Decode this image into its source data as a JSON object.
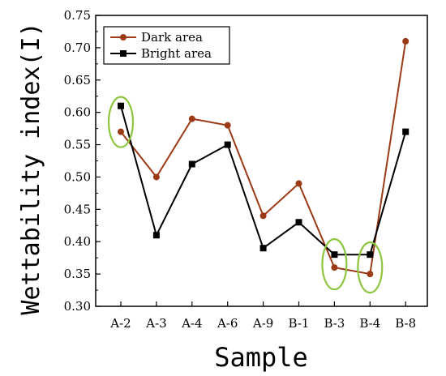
{
  "chart_data": {
    "type": "line",
    "categories": [
      "A-2",
      "A-3",
      "A-4",
      "A-6",
      "A-9",
      "B-1",
      "B-3",
      "B-4",
      "B-8"
    ],
    "series": [
      {
        "name": "Dark area",
        "values": [
          0.57,
          0.5,
          0.59,
          0.58,
          0.44,
          0.49,
          0.36,
          0.35,
          0.71
        ],
        "color": "#9b3a14",
        "marker": "circle"
      },
      {
        "name": "Bright area",
        "values": [
          0.61,
          0.41,
          0.52,
          0.55,
          0.39,
          0.43,
          0.38,
          0.38,
          0.57
        ],
        "color": "#000000",
        "marker": "square"
      }
    ],
    "xlabel": "Sample",
    "ylabel": "Wettability index(I)",
    "ylim": [
      0.3,
      0.75
    ],
    "yticks": [
      "0.30",
      "0.35",
      "0.40",
      "0.45",
      "0.50",
      "0.55",
      "0.60",
      "0.65",
      "0.70",
      "0.75"
    ],
    "grid": false,
    "legend_position": "top-left",
    "highlight_color": "#8cc63f",
    "highlights": [
      {
        "category": "A-2",
        "y_center": 0.585
      },
      {
        "category": "B-3",
        "y_center": 0.365
      },
      {
        "category": "B-4",
        "y_center": 0.36
      }
    ]
  }
}
